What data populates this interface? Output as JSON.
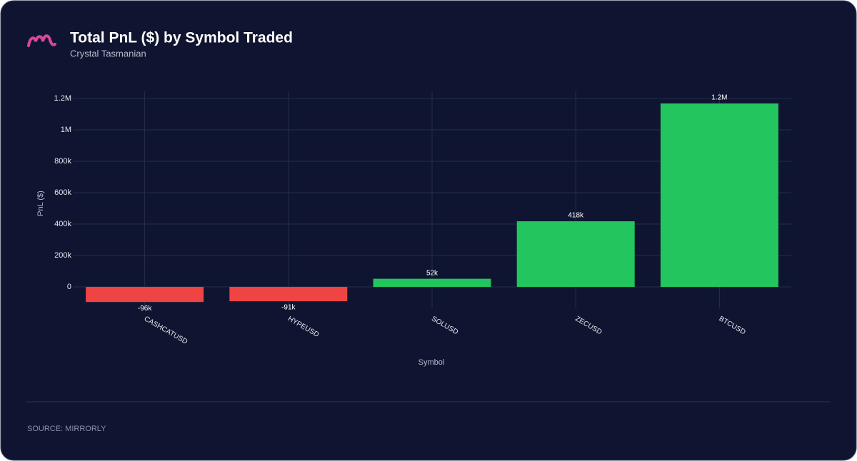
{
  "chart_data": {
    "type": "bar",
    "title": "Total PnL ($) by Symbol Traded",
    "subtitle": "Crystal Tasmanian",
    "x_label": "Symbol",
    "y_label": "PnL ($)",
    "source": "SOURCE: MIRRORLY",
    "categories": [
      "CASHCATUSD",
      "HYPEUSD",
      "SOLUSD",
      "ZECUSD",
      "BTCUSD"
    ],
    "values": [
      -96000,
      -91000,
      52000,
      418000,
      1168000
    ],
    "value_labels": [
      "-96k",
      "-91k",
      "52k",
      "418k",
      "1.2M"
    ],
    "colors": [
      "#ef4444",
      "#ef4444",
      "#22c55e",
      "#22c55e",
      "#22c55e"
    ],
    "ylim": [
      -136000,
      1245000
    ],
    "yticks": [
      0,
      {
        "value": 200000,
        "label": "200k"
      },
      {
        "value": 400000,
        "label": "400k"
      },
      {
        "value": 600000,
        "label": "600k"
      },
      {
        "value": 800000,
        "label": "800k"
      },
      {
        "value": 1000000,
        "label": "1M"
      },
      {
        "value": 1200000,
        "label": "1.2M"
      }
    ],
    "grid": true
  }
}
